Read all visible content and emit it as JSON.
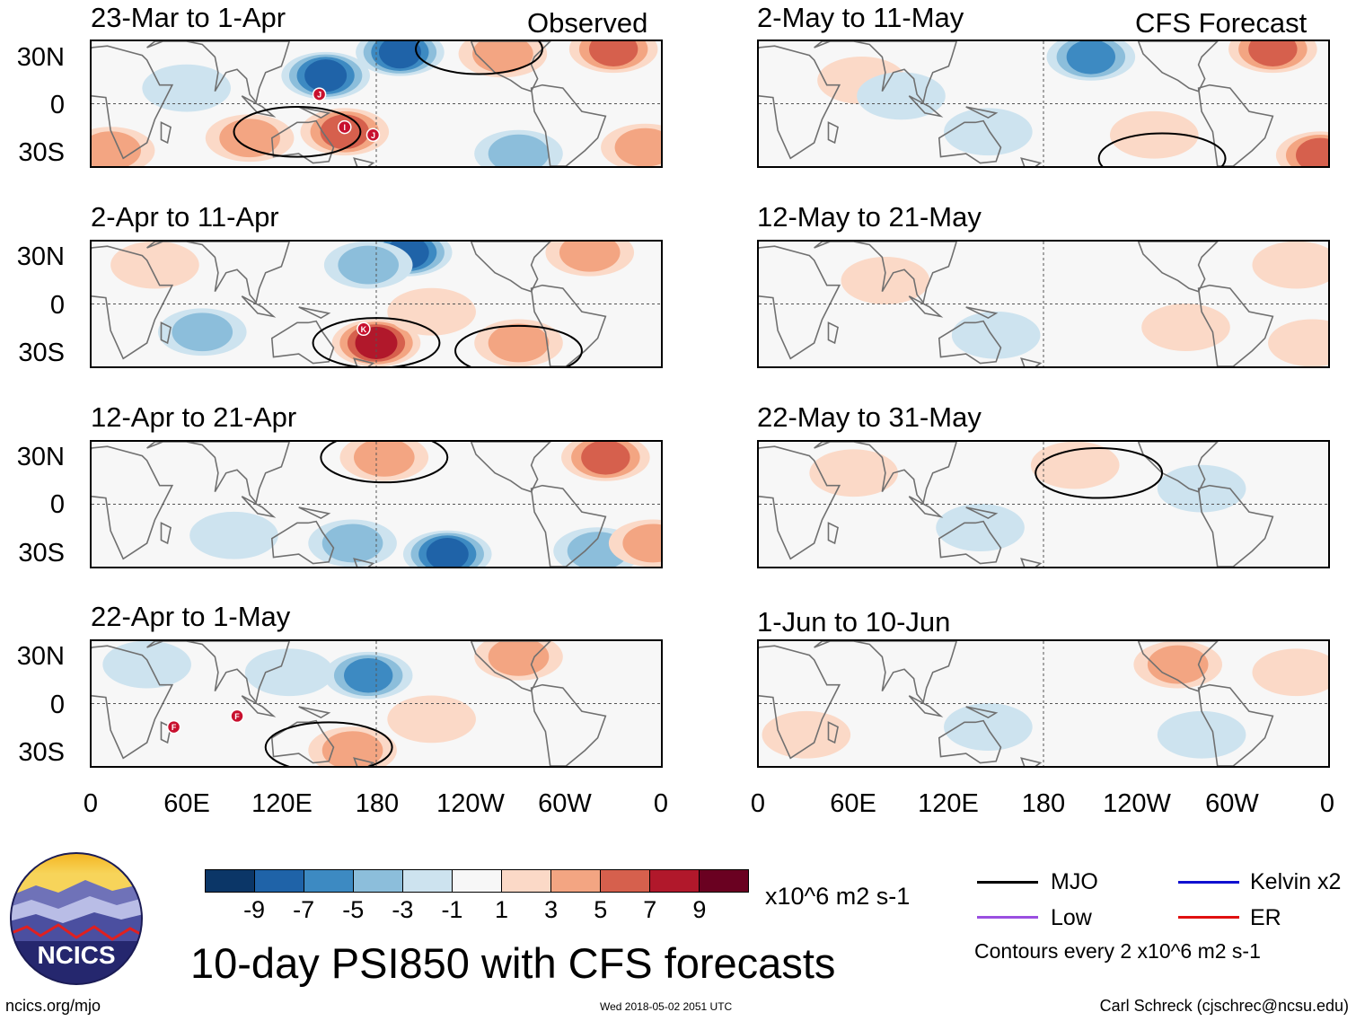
{
  "chart_data": {
    "type": "heatmap",
    "title": "10-day PSI850 with CFS forecasts",
    "variable": "PSI850 anomaly",
    "units": "x10^6 m2 s-1",
    "colorbar": {
      "ticks": [
        "-9",
        "-7",
        "-5",
        "-3",
        "-1",
        "1",
        "3",
        "5",
        "7",
        "9"
      ],
      "levels": [
        -11,
        -9,
        -7,
        -5,
        -3,
        -1,
        1,
        3,
        5,
        7,
        9,
        11
      ],
      "colors": [
        "#0b3667",
        "#1f63a8",
        "#3d8ac2",
        "#8cbedb",
        "#cde3ef",
        "#f7f7f7",
        "#fbd9c7",
        "#f3a582",
        "#d6604d",
        "#b1182b",
        "#6a0121"
      ]
    },
    "lat_ticks": [
      "30N",
      "0",
      "30S"
    ],
    "lon_ticks": [
      "0",
      "60E",
      "120E",
      "180",
      "120W",
      "60W",
      "0"
    ],
    "lat_range": [
      -40,
      40
    ],
    "lon_range": [
      0,
      360
    ],
    "observed_label": "Observed",
    "forecast_label": "CFS Forecast",
    "panels": [
      {
        "column": "observed",
        "title": "23-Mar to 1-Apr",
        "features": [
          {
            "lon": 148,
            "lat": 18,
            "value": -9
          },
          {
            "lon": 195,
            "lat": 33,
            "value": -9
          },
          {
            "lon": 330,
            "lat": 35,
            "value": 7
          },
          {
            "lon": 260,
            "lat": 32,
            "value": 5
          },
          {
            "lon": 160,
            "lat": -18,
            "value": 7
          },
          {
            "lon": 12,
            "lat": -30,
            "value": 5
          },
          {
            "lon": 100,
            "lat": -22,
            "value": 5
          },
          {
            "lon": 270,
            "lat": -32,
            "value": -5
          },
          {
            "lon": 350,
            "lat": -28,
            "value": 5
          },
          {
            "lon": 60,
            "lat": 10,
            "value": -3
          }
        ],
        "storms": [
          {
            "label": "J",
            "lon": 144,
            "lat": 6
          },
          {
            "label": "I",
            "lon": 160,
            "lat": -15
          },
          {
            "label": "J",
            "lon": 178,
            "lat": -20
          }
        ],
        "mjo_contours": [
          {
            "lon": 130,
            "lat": -18,
            "value": 2
          },
          {
            "lon": 245,
            "lat": 35,
            "value": 2
          }
        ]
      },
      {
        "column": "observed",
        "title": "2-Apr to 11-Apr",
        "features": [
          {
            "lon": 200,
            "lat": 33,
            "value": -9
          },
          {
            "lon": 175,
            "lat": 25,
            "value": -5
          },
          {
            "lon": 315,
            "lat": 33,
            "value": 5
          },
          {
            "lon": 180,
            "lat": -25,
            "value": 9
          },
          {
            "lon": 70,
            "lat": -18,
            "value": -5
          },
          {
            "lon": 270,
            "lat": -25,
            "value": 5
          },
          {
            "lon": 40,
            "lat": 25,
            "value": 3
          },
          {
            "lon": 215,
            "lat": -5,
            "value": 3
          }
        ],
        "storms": [
          {
            "label": "K",
            "lon": 172,
            "lat": -16
          }
        ],
        "mjo_contours": [
          {
            "lon": 180,
            "lat": -25,
            "value": 2
          },
          {
            "lon": 270,
            "lat": -30,
            "value": 2
          }
        ]
      },
      {
        "column": "observed",
        "title": "12-Apr to 21-Apr",
        "features": [
          {
            "lon": 185,
            "lat": 30,
            "value": 5
          },
          {
            "lon": 325,
            "lat": 30,
            "value": 7
          },
          {
            "lon": 225,
            "lat": -32,
            "value": -9
          },
          {
            "lon": 165,
            "lat": -25,
            "value": -5
          },
          {
            "lon": 90,
            "lat": -20,
            "value": -3
          },
          {
            "lon": 320,
            "lat": -30,
            "value": -5
          },
          {
            "lon": 355,
            "lat": -25,
            "value": 5
          }
        ],
        "storms": [],
        "mjo_contours": [
          {
            "lon": 185,
            "lat": 30,
            "value": 2
          }
        ]
      },
      {
        "column": "observed",
        "title": "22-Apr to 1-May",
        "features": [
          {
            "lon": 175,
            "lat": 18,
            "value": -7
          },
          {
            "lon": 270,
            "lat": 30,
            "value": 5
          },
          {
            "lon": 165,
            "lat": -30,
            "value": 5
          },
          {
            "lon": 125,
            "lat": 20,
            "value": -3
          },
          {
            "lon": 35,
            "lat": 25,
            "value": -3
          },
          {
            "lon": 215,
            "lat": -10,
            "value": 3
          }
        ],
        "storms": [
          {
            "label": "F",
            "lon": 52,
            "lat": -15
          },
          {
            "label": "F",
            "lon": 92,
            "lat": -8
          }
        ],
        "mjo_contours": [
          {
            "lon": 150,
            "lat": -28,
            "value": 2
          }
        ]
      },
      {
        "column": "forecast",
        "title": "2-May to 11-May",
        "features": [
          {
            "lon": 210,
            "lat": 30,
            "value": -7
          },
          {
            "lon": 325,
            "lat": 35,
            "value": 7
          },
          {
            "lon": 355,
            "lat": -33,
            "value": 7
          },
          {
            "lon": 65,
            "lat": 15,
            "value": 3
          },
          {
            "lon": 145,
            "lat": -18,
            "value": -3
          },
          {
            "lon": 90,
            "lat": 5,
            "value": -3
          },
          {
            "lon": 250,
            "lat": -20,
            "value": 3
          }
        ],
        "storms": [],
        "mjo_contours": [
          {
            "lon": 255,
            "lat": -35,
            "value": 2
          }
        ]
      },
      {
        "column": "forecast",
        "title": "12-May to 21-May",
        "features": [
          {
            "lon": 150,
            "lat": -20,
            "value": -3
          },
          {
            "lon": 270,
            "lat": -15,
            "value": 3
          },
          {
            "lon": 340,
            "lat": 25,
            "value": 3
          },
          {
            "lon": 350,
            "lat": -25,
            "value": 3
          },
          {
            "lon": 80,
            "lat": 15,
            "value": 3
          }
        ],
        "storms": [],
        "mjo_contours": []
      },
      {
        "column": "forecast",
        "title": "22-May to 31-May",
        "features": [
          {
            "lon": 140,
            "lat": -15,
            "value": -3
          },
          {
            "lon": 280,
            "lat": 10,
            "value": -3
          },
          {
            "lon": 200,
            "lat": 25,
            "value": 3
          },
          {
            "lon": 60,
            "lat": 20,
            "value": 3
          }
        ],
        "storms": [],
        "mjo_contours": [
          {
            "lon": 215,
            "lat": 20,
            "value": 2
          }
        ]
      },
      {
        "column": "forecast",
        "title": "1-Jun to 10-Jun",
        "features": [
          {
            "lon": 265,
            "lat": 25,
            "value": 5
          },
          {
            "lon": 145,
            "lat": -15,
            "value": -3
          },
          {
            "lon": 280,
            "lat": -20,
            "value": -3
          },
          {
            "lon": 30,
            "lat": -20,
            "value": 3
          },
          {
            "lon": 340,
            "lat": 20,
            "value": 3
          }
        ],
        "storms": [],
        "mjo_contours": []
      }
    ],
    "legend": {
      "entries": [
        {
          "label": "MJO",
          "color": "#000000"
        },
        {
          "label": "Kelvin x2",
          "color": "#1010d0"
        },
        {
          "label": "Low",
          "color": "#9a4fe0"
        },
        {
          "label": "ER",
          "color": "#e01010"
        }
      ],
      "contour_note": "Contours every 2 x10^6 m2 s-1"
    }
  },
  "logo_text": "NCICS",
  "footer": {
    "left": "ncics.org/mjo",
    "timestamp": "Wed 2018-05-02 2051 UTC",
    "credit": "Carl Schreck (cjschrec@ncsu.edu)"
  }
}
